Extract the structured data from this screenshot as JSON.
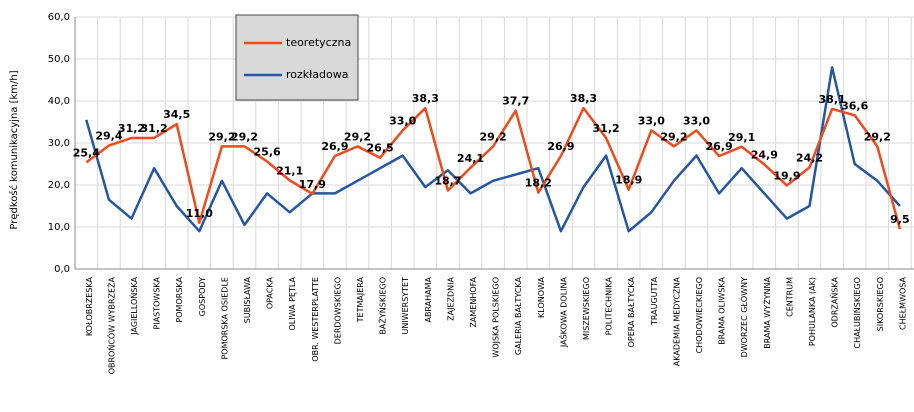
{
  "chart_data": {
    "type": "line",
    "y_label": "Prędkość komunikacyjna [km/h]",
    "categories": [
      "KOŁOBRZESKA",
      "OBROŃCÓW WYBRZEŻA",
      "JAGIELLOŃSKA",
      "PIASTOWSKA",
      "POMORSKA",
      "GOSPODY",
      "POMORSKA OSIEDLE",
      "SUBISŁAWA",
      "OPACKA",
      "OLIWA PĘTLA",
      "OBR. WESTERPLATTE",
      "DERDOWSKIEGO",
      "TETMAJERA",
      "BAŻYŃSKIEGO",
      "UNIWERSYTET",
      "ABRAHAMA",
      "ZAJEZDNIA",
      "ZAMENHOFA",
      "WOJSKA POLSKIEGO",
      "GALERIA BAŁTYCKA",
      "KLONOWA",
      "JAŚKOWA DOLINA",
      "MISZEWSKIEGO",
      "POLITECHNIKA",
      "OPERA BAŁTYCKA",
      "TRAUGUTTA",
      "AKADEMIA MEDYCZNA",
      "CHODOWIECKIEGO",
      "BRAMA OLIWSKA",
      "DWORZEC GŁÓWNY",
      "BRAMA WYŻYNNA",
      "CENTRUM",
      "POHULANKA (AK)",
      "ODRZAŃSKA",
      "CHAŁUBIŃSKIEGO",
      "SIKORSKIEGO",
      "CHEŁMWOSA"
    ],
    "series": [
      {
        "name": "teoretyczna",
        "color": "#f04a1a",
        "values": [
          25.4,
          29.4,
          31.2,
          31.2,
          34.5,
          11.0,
          29.2,
          29.2,
          25.6,
          21.1,
          17.9,
          26.9,
          29.2,
          26.5,
          33.0,
          38.3,
          18.7,
          24.1,
          29.2,
          37.7,
          18.2,
          26.9,
          38.3,
          31.2,
          18.9,
          33.0,
          29.2,
          33.0,
          26.9,
          29.1,
          24.9,
          19.9,
          24.2,
          38.1,
          36.6,
          29.2,
          9.5
        ],
        "value_labels": [
          "25,4",
          "29,4",
          "31,2",
          "31,2",
          "34,5",
          "11,0",
          "29,2",
          "29,2",
          "25,6",
          "21,1",
          "17,9",
          "26,9",
          "29,2",
          "26,5",
          "33,0",
          "38,3",
          "18,7",
          "24,1",
          "29,2",
          "37,7",
          "18,2",
          "26,9",
          "38,3",
          "31,2",
          "18,9",
          "33,0",
          "29,2",
          "33,0",
          "26,9",
          "29,1",
          "24,9",
          "19,9",
          "24,2",
          "38,1",
          "36,6",
          "29,2",
          "9,5"
        ]
      },
      {
        "name": "rozkładowa",
        "color": "#2456a4",
        "values": [
          35.5,
          16.5,
          12,
          24,
          15,
          9,
          21,
          10.5,
          18,
          13.5,
          18,
          18,
          21,
          24,
          27,
          19.5,
          23.5,
          18,
          21,
          22.5,
          24,
          9,
          19.5,
          27,
          9,
          13.5,
          21,
          27,
          18,
          24,
          18,
          12,
          15,
          48,
          25,
          21,
          15
        ]
      }
    ],
    "ylim": [
      0,
      60
    ],
    "yticks": [
      {
        "value": 0,
        "label": "0,0"
      },
      {
        "value": 10,
        "label": "10,0"
      },
      {
        "value": 20,
        "label": "20,0"
      },
      {
        "value": 30,
        "label": "30,0"
      },
      {
        "value": 40,
        "label": "40,0"
      },
      {
        "value": 50,
        "label": "50,0"
      },
      {
        "value": 60,
        "label": "60,0"
      }
    ],
    "grid": true
  }
}
